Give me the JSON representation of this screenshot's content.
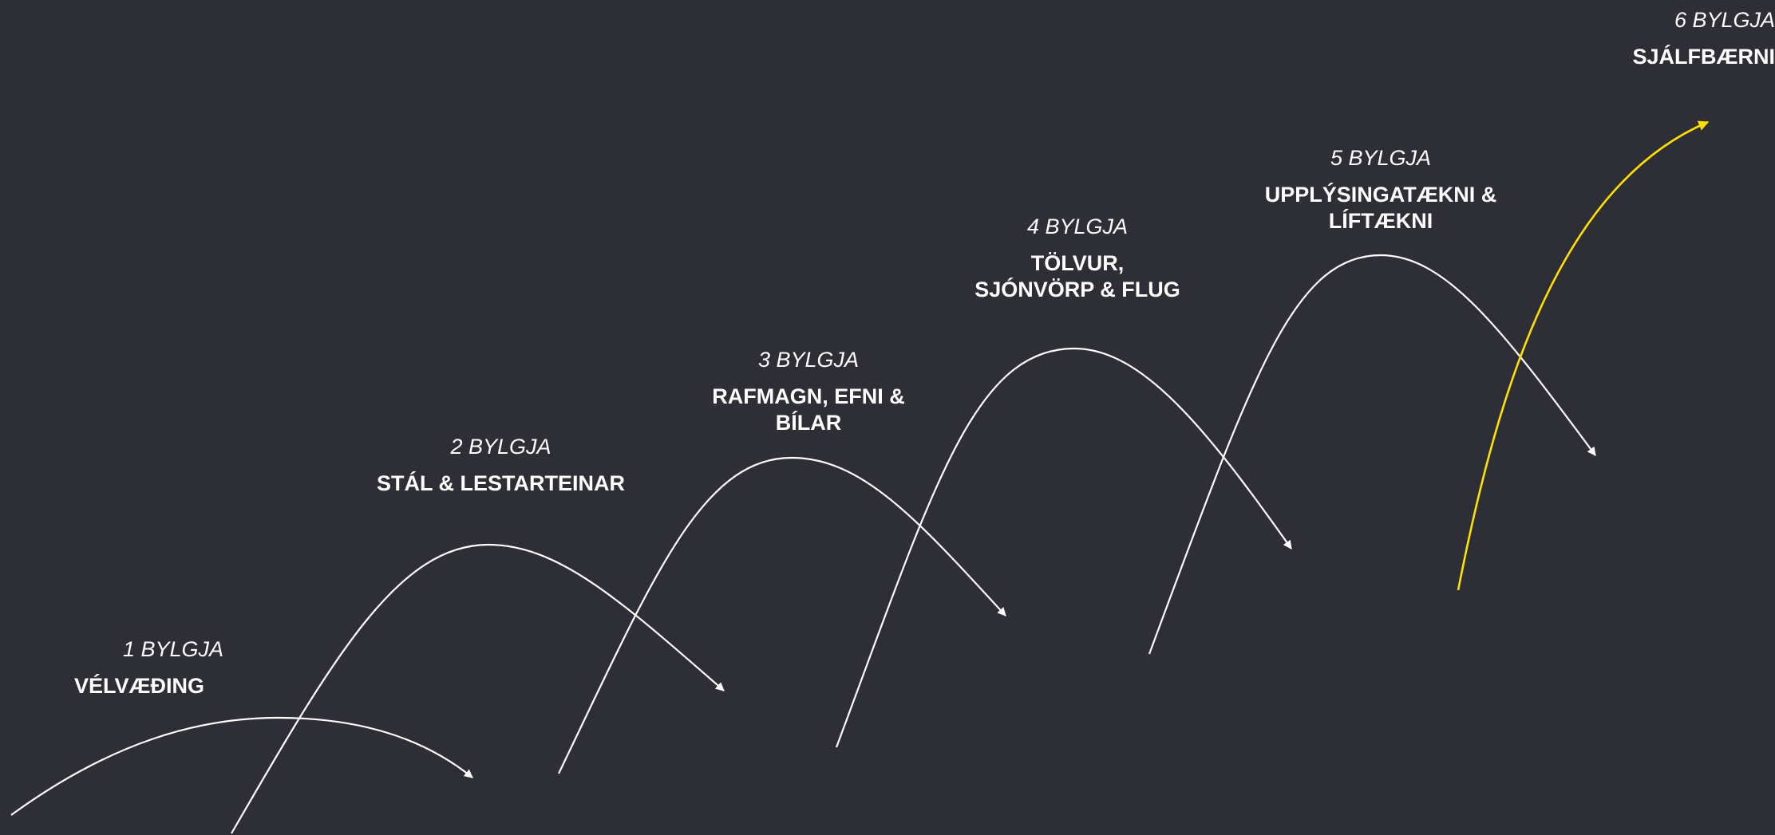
{
  "waves": [
    {
      "number": "1 BYLGJA",
      "name_lines": [
        "VÉLVÆÐING"
      ],
      "color": "#ffffff"
    },
    {
      "number": "2 BYLGJA",
      "name_lines": [
        "STÁL & LESTARTEINAR"
      ],
      "color": "#ffffff"
    },
    {
      "number": "3 BYLGJA",
      "name_lines": [
        "RAFMAGN, EFNI &",
        "BÍLAR"
      ],
      "color": "#ffffff"
    },
    {
      "number": "4 BYLGJA",
      "name_lines": [
        "TÖLVUR,",
        "SJÓNVÖRP & FLUG"
      ],
      "color": "#ffffff"
    },
    {
      "number": "5 BYLGJA",
      "name_lines": [
        "UPPLÝSINGATÆKNI &",
        "LÍFTÆKNI"
      ],
      "color": "#ffffff"
    },
    {
      "number": "6 BYLGJA",
      "name_lines": [
        "SJÁLFBÆRNI"
      ],
      "color": "#ffe000"
    }
  ],
  "background_color": "#2e2e36"
}
